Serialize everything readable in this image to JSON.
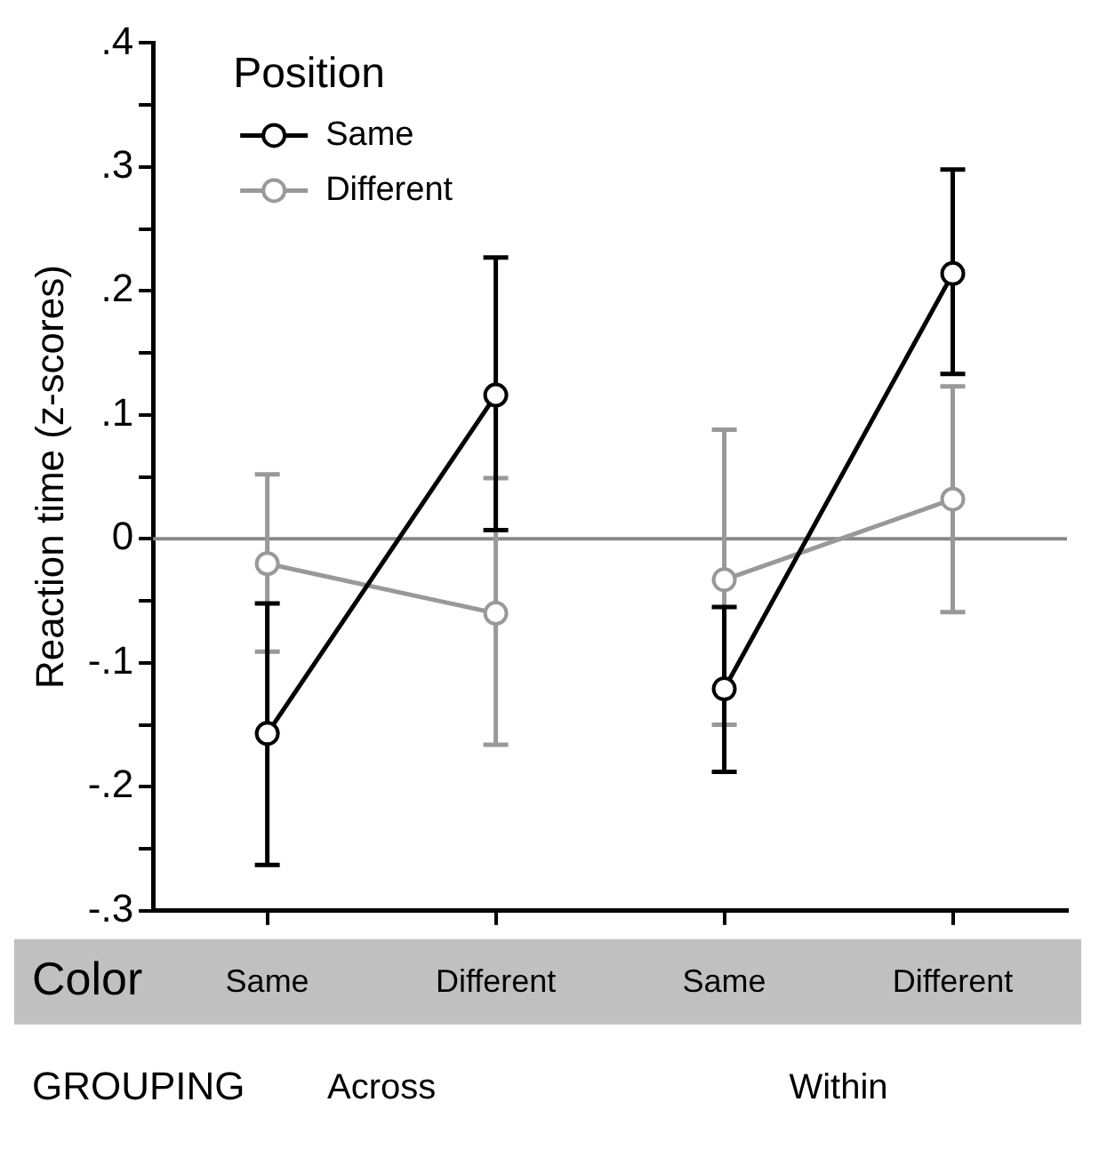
{
  "chart_data": {
    "type": "line",
    "ylabel": "Reaction time (z-scores)",
    "legend_title": "Position",
    "legend": "top left",
    "marker": "circle",
    "line_style": "solid",
    "grid": false,
    "categories": [
      "Same",
      "Different",
      "Same",
      "Different"
    ],
    "series": [
      {
        "name": "Same",
        "color": "#000000",
        "values": [
          -0.157,
          0.116,
          -0.121,
          0.214
        ],
        "errors": [
          [
            -0.263,
            -0.052
          ],
          [
            0.007,
            0.227
          ],
          [
            -0.188,
            -0.055
          ],
          [
            0.133,
            0.298
          ]
        ]
      },
      {
        "name": "Different",
        "color": "#999999",
        "values": [
          -0.02,
          -0.06,
          -0.033,
          0.032
        ],
        "errors": [
          [
            -0.091,
            0.052
          ],
          [
            -0.166,
            0.049
          ],
          [
            -0.15,
            0.088
          ],
          [
            -0.059,
            0.123
          ]
        ]
      }
    ],
    "ylim": [
      -0.3,
      0.4
    ],
    "yticks": [
      {
        "value": 0.4,
        "label": ".4"
      },
      {
        "value": 0.35,
        "label": null
      },
      {
        "value": 0.3,
        "label": ".3"
      },
      {
        "value": 0.25,
        "label": null
      },
      {
        "value": 0.2,
        "label": ".2"
      },
      {
        "value": 0.15,
        "label": null
      },
      {
        "value": 0.1,
        "label": ".1"
      },
      {
        "value": 0.05,
        "label": null
      },
      0,
      {
        "value": -0.05,
        "label": null
      },
      {
        "value": -0.1,
        "label": "-.1"
      },
      {
        "value": -0.15,
        "label": null
      },
      {
        "value": -0.2,
        "label": "-.2"
      },
      {
        "value": -0.25,
        "label": null
      },
      {
        "value": -0.3,
        "label": "-.3"
      }
    ],
    "ref_lines": [
      {
        "axis": "y",
        "value": 0,
        "color": "#888888"
      }
    ],
    "annotations": [
      "Color",
      "GROUPING",
      "Across",
      "Within"
    ]
  }
}
